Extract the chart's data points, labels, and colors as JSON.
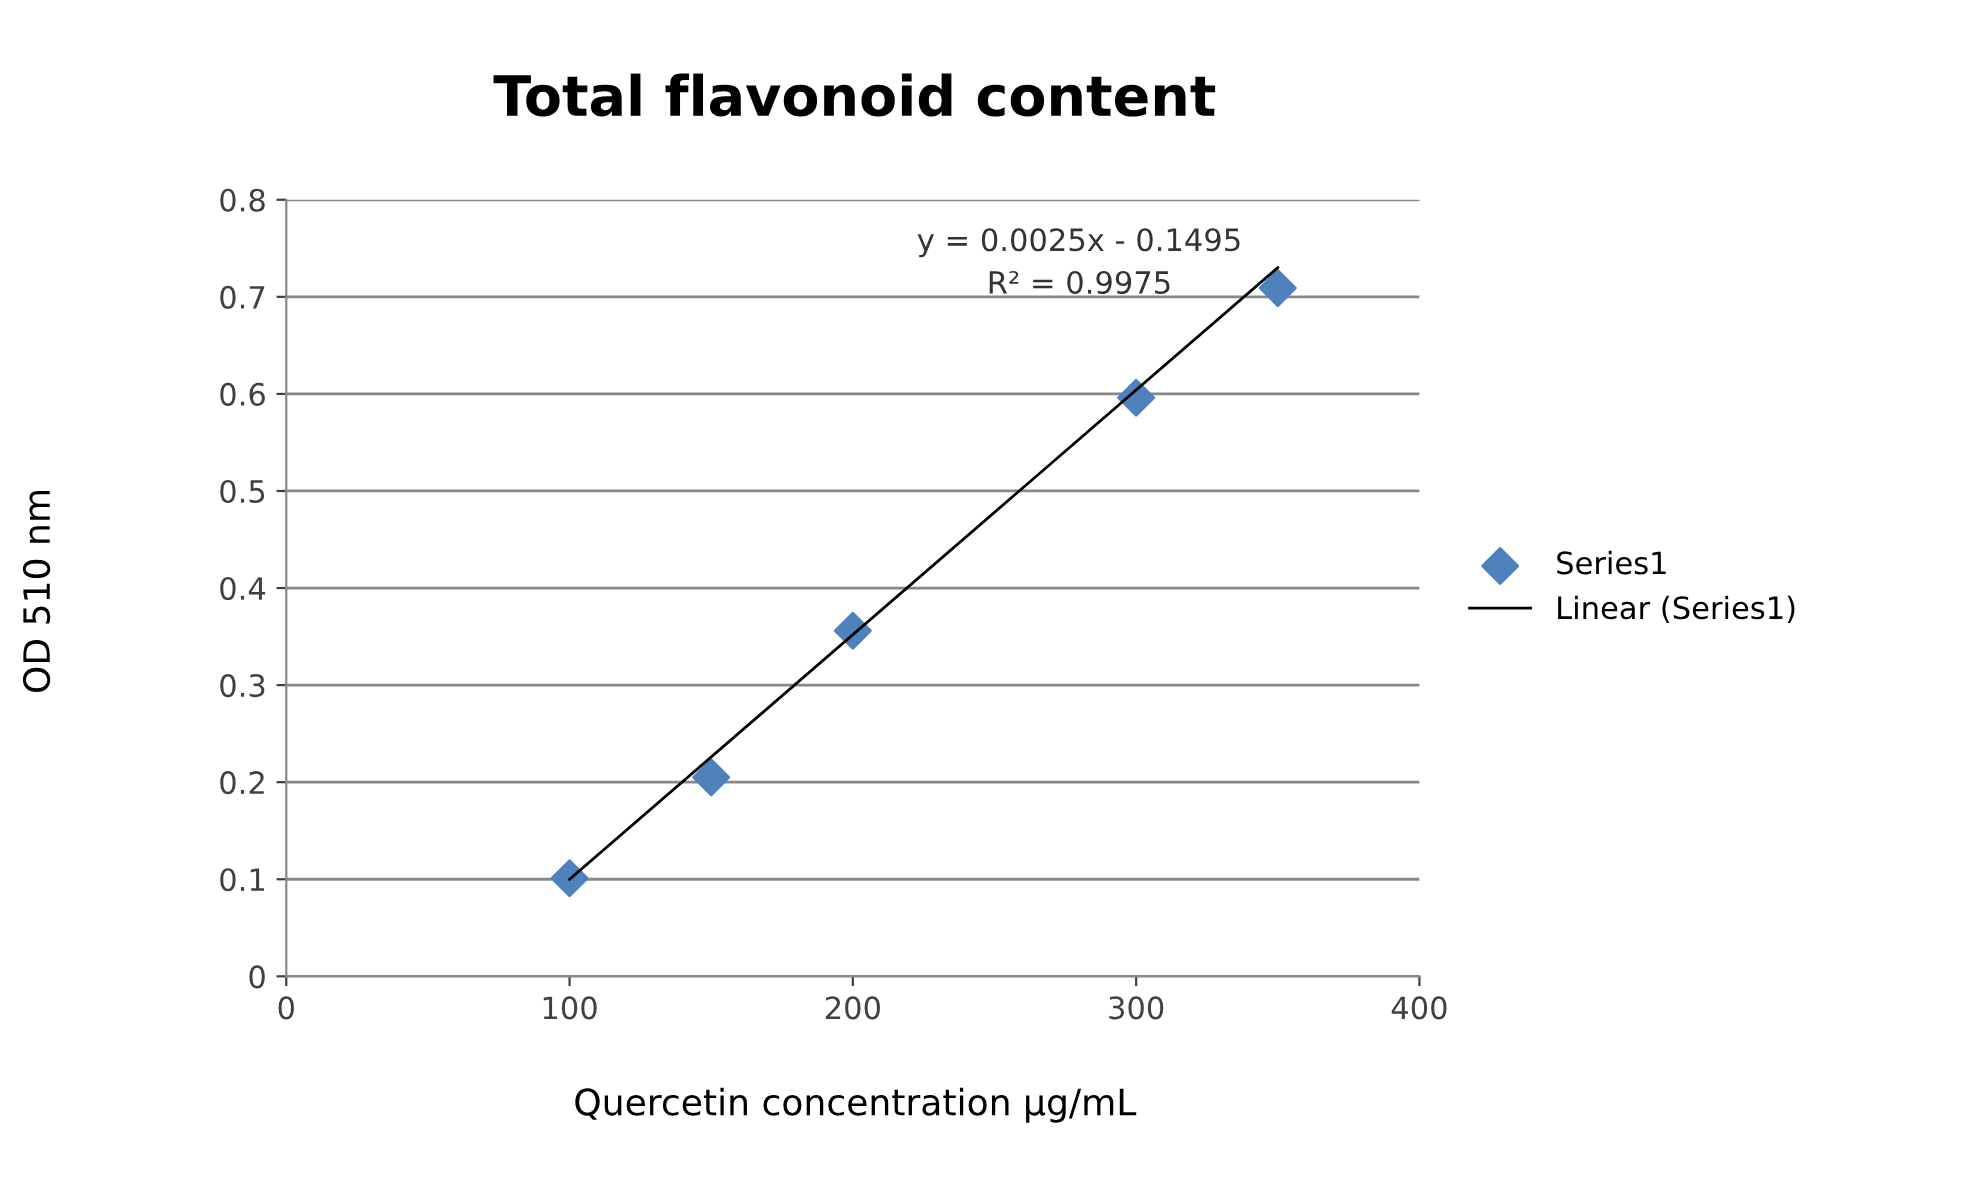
{
  "chart_data": {
    "type": "scatter",
    "title": "Total flavonoid content",
    "xlabel": "Quercetin concentration µg/mL",
    "ylabel": "OD 510 nm",
    "x": [
      100,
      150,
      200,
      300,
      350
    ],
    "series": [
      {
        "name": "Series1",
        "color": "#4f81bd",
        "marker": "diamond",
        "values": [
          0.101,
          0.205,
          0.356,
          0.596,
          0.709
        ]
      },
      {
        "name": "Linear (Series1)",
        "type": "line",
        "color": "#000000",
        "marker": "none",
        "x": [
          100,
          350
        ],
        "values": [
          0.1,
          0.73
        ]
      }
    ],
    "annotations": [
      "y = 0.0025x - 0.1495",
      "R² = 0.9975"
    ],
    "xlim": [
      0,
      400
    ],
    "xticks": [
      0,
      100,
      200,
      300,
      400
    ],
    "ylim": [
      0,
      0.8
    ],
    "yticks": [
      0,
      0.1,
      0.2,
      0.3,
      0.4,
      0.5,
      0.6,
      0.7,
      0.8
    ],
    "grid": "y",
    "legend": "right"
  }
}
